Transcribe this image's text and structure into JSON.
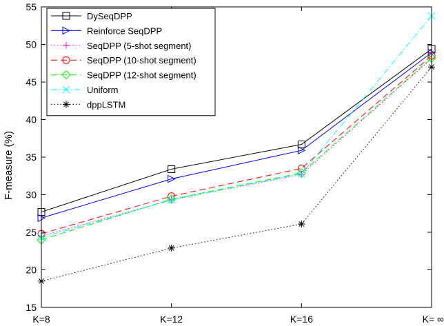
{
  "chart_data": {
    "type": "line",
    "categories": [
      "K=8",
      "K=12",
      "K=16",
      "K= ∞"
    ],
    "ylabel": "F-measure (%)",
    "xlabel": "",
    "title": "",
    "ylim": [
      15,
      55
    ],
    "yticks": [
      15,
      20,
      25,
      30,
      35,
      40,
      45,
      50,
      55
    ],
    "grid": false,
    "legend_position": "top-left",
    "series": [
      {
        "name": "DySeqDPP",
        "values": [
          27.7,
          33.4,
          36.7,
          49.4
        ],
        "color": "#000000",
        "dash": "solid",
        "marker": "square"
      },
      {
        "name": "Reinforce SeqDPP",
        "values": [
          26.9,
          32.1,
          35.9,
          48.9
        ],
        "color": "#0000ff",
        "dash": "solid",
        "marker": "triangle-right"
      },
      {
        "name": "SeqDPP (5-shot segment)",
        "values": [
          24.5,
          29.3,
          32.7,
          48.1
        ],
        "color": "#ff00ff",
        "dash": "dotted",
        "marker": "plus"
      },
      {
        "name": "SeqDPP (10-shot segment)",
        "values": [
          24.8,
          29.8,
          33.5,
          48.5
        ],
        "color": "#ff0000",
        "dash": "dashed",
        "marker": "circle"
      },
      {
        "name": "SeqDPP (12-shot segment)",
        "values": [
          24.0,
          29.4,
          32.9,
          48.2
        ],
        "color": "#00ff00",
        "dash": "dashed",
        "marker": "diamond"
      },
      {
        "name": "Uniform",
        "values": [
          24.3,
          29.3,
          32.8,
          53.8
        ],
        "color": "#00ffff",
        "dash": "dashdot",
        "marker": "x"
      },
      {
        "name": "dppLSTM",
        "values": [
          18.5,
          22.9,
          26.1,
          47.0
        ],
        "color": "#000000",
        "dash": "dotted",
        "marker": "asterisk"
      }
    ]
  }
}
